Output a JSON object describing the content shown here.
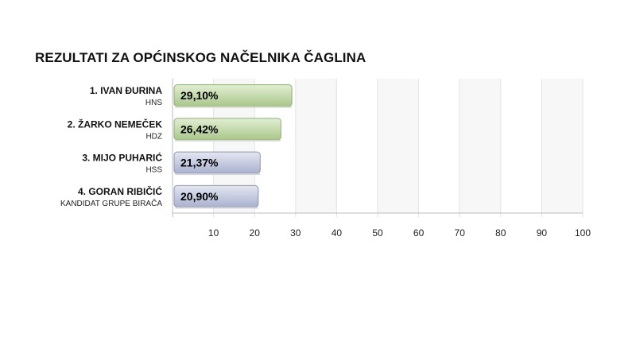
{
  "title": "REZULTATI ZA OPĆINSKOG NAČELNIKA ČAGLINA",
  "colors": {
    "green_top": "#e2efd3",
    "green_bottom": "#a9c78a",
    "green_stroke": "#8fae70",
    "blue_top": "#e4e7f2",
    "blue_bottom": "#a9b1cf",
    "blue_stroke": "#8d95b5",
    "grid": "#e3e3e3",
    "axis": "#bdbdbd"
  },
  "chart_data": {
    "type": "bar",
    "orientation": "horizontal",
    "title": "REZULTATI ZA OPĆINSKOG NAČELNIKA ČAGLINA",
    "categories": [
      "1. IVAN ĐURINA",
      "2. ŽARKO NEMEČEK",
      "3. MIJO PUHARIĆ",
      "4. GORAN RIBIČIĆ"
    ],
    "parties": [
      "HNS",
      "HDZ",
      "HSS",
      "KANDIDAT GRUPE BIRAČA"
    ],
    "values": [
      29.1,
      26.42,
      21.37,
      20.9
    ],
    "value_labels": [
      "29,10%",
      "26,42%",
      "21,37%",
      "20,90%"
    ],
    "bar_colors": [
      "green",
      "green",
      "blue",
      "blue"
    ],
    "xlim": [
      0,
      100
    ],
    "xticks": [
      10,
      20,
      30,
      40,
      50,
      60,
      70,
      80,
      90,
      100
    ],
    "xtick_labels": [
      "10",
      "20",
      "30",
      "40",
      "50",
      "60",
      "70",
      "80",
      "90",
      "100"
    ],
    "xlabel": "",
    "ylabel": "",
    "grid": true,
    "alternating_column_shading": true
  }
}
